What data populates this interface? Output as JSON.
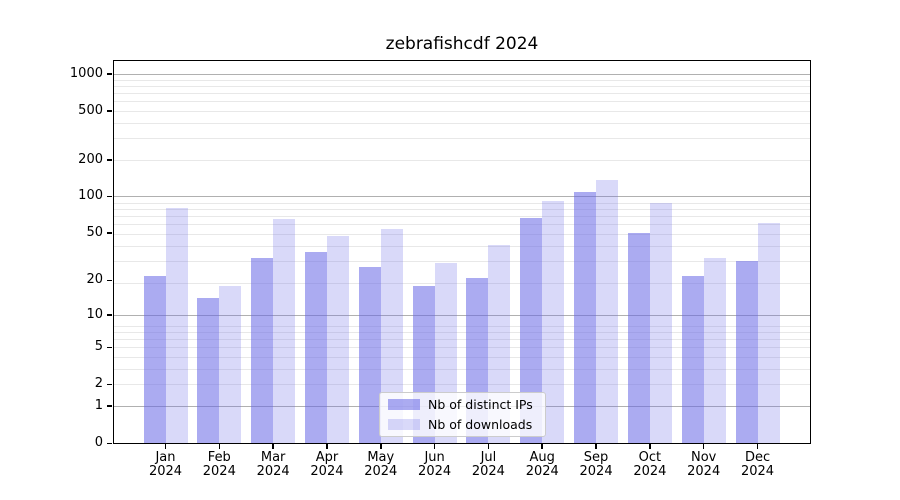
{
  "title": "zebrafishcdf 2024",
  "chart_data": {
    "type": "bar",
    "title": "zebrafishcdf 2024",
    "categories": [
      "Jan 2024",
      "Feb 2024",
      "Mar 2024",
      "Apr 2024",
      "May 2024",
      "Jun 2024",
      "Jul 2024",
      "Aug 2024",
      "Sep 2024",
      "Oct 2024",
      "Nov 2024",
      "Dec 2024"
    ],
    "series": [
      {
        "name": "Nb of distinct IPs",
        "color": "rgba(102,102,230,0.55)",
        "values": [
          22,
          14,
          31,
          35,
          26,
          18,
          21,
          66,
          108,
          50,
          22,
          29
        ]
      },
      {
        "name": "Nb of downloads",
        "color": "rgba(102,102,230,0.25)",
        "values": [
          80,
          18,
          65,
          47,
          54,
          28,
          40,
          92,
          137,
          89,
          31,
          60
        ]
      }
    ],
    "xlabel": "",
    "ylabel": "",
    "y_scale": "log10(value+1)",
    "y_ticks": [
      0,
      1,
      2,
      5,
      10,
      20,
      50,
      100,
      200,
      500,
      1000
    ],
    "y_range": [
      0,
      1250
    ],
    "grid": true,
    "legend_position": "inside-bottom-center"
  },
  "colors": {
    "bar_dark": "rgba(102,102,230,0.55)",
    "bar_light": "rgba(102,102,230,0.25)",
    "grid_major": "#b0b0b0",
    "grid_minor": "#e8e8e8",
    "spine": "#000000",
    "background": "#ffffff"
  }
}
